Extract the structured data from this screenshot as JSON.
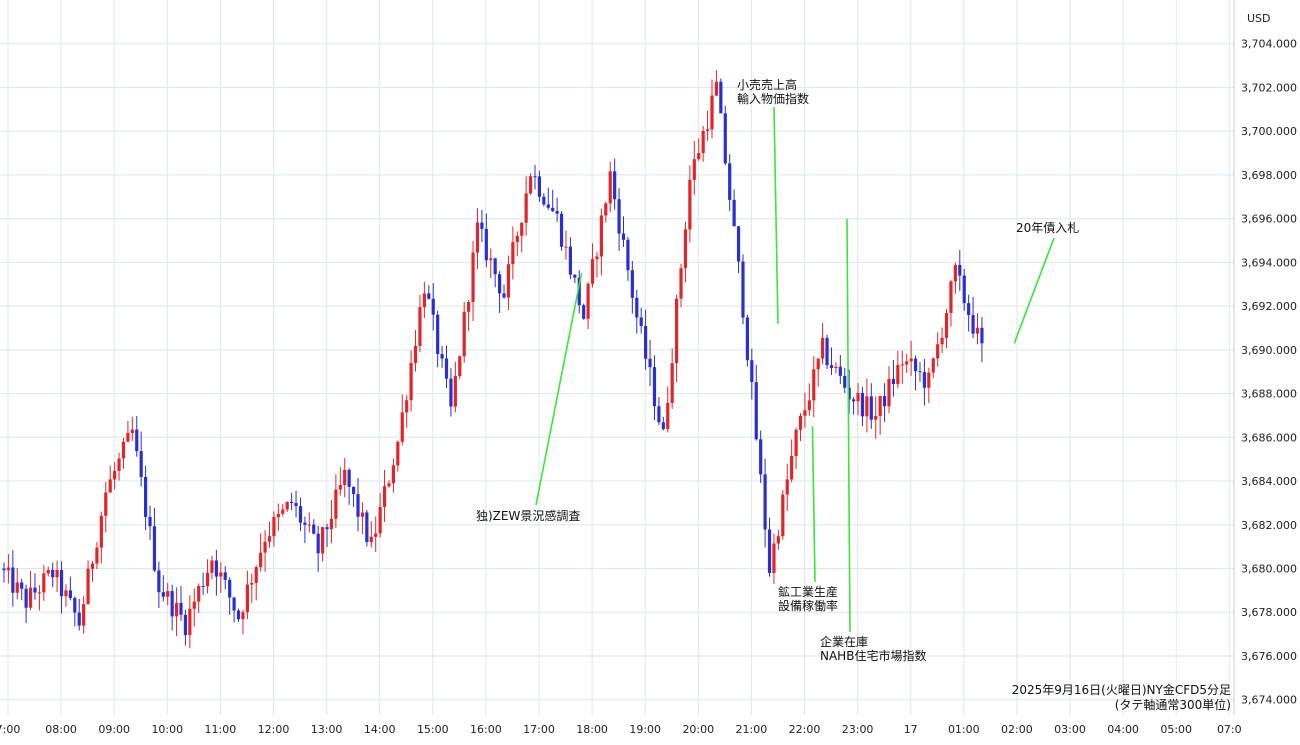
{
  "chart_data": {
    "type": "candlestick",
    "title": "2025年9月16日(火曜日)NY金CFD5分足",
    "subtitle": "(タテ軸通常300単位)",
    "currency": "USD",
    "ylim": [
      3673.3,
      3706.0
    ],
    "y_ticks": [
      "3,674.000",
      "3,676.000",
      "3,678.000",
      "3,680.000",
      "3,682.000",
      "3,684.000",
      "3,686.000",
      "3,688.000",
      "3,690.000",
      "3,692.000",
      "3,694.000",
      "3,696.000",
      "3,698.000",
      "3,700.000",
      "3,702.000",
      "3,704.000"
    ],
    "x_labels": [
      "7:00",
      "08:00",
      "09:00",
      "10:00",
      "11:00",
      "12:00",
      "13:00",
      "14:00",
      "15:00",
      "16:00",
      "17:00",
      "18:00",
      "19:00",
      "20:00",
      "21:00",
      "22:00",
      "23:00",
      "17",
      "01:00",
      "02:00",
      "03:00",
      "04:00",
      "05:00",
      "07:0"
    ],
    "grid": true,
    "colors": {
      "up": "#e0262a",
      "down": "#2a2fd0",
      "annotation_line": "#39e639",
      "grid": "#dfe6ee"
    },
    "hourly_path": [
      3680.0,
      3678.5,
      3679.8,
      3677.5,
      3683.5,
      3686.2,
      3679.2,
      3677.5,
      3680.5,
      3677.8,
      3681.5,
      3683.0,
      3680.8,
      3684.2,
      3681.0,
      3685.8,
      3693.0,
      3687.2,
      3695.5,
      3692.5,
      3698.2,
      3696.0,
      3691.5,
      3698.0,
      3691.5,
      3686.0,
      3697.8,
      3702.0,
      3692.0,
      3680.0,
      3686.0,
      3690.0,
      3688.0,
      3687.0,
      3689.5,
      3688.5,
      3693.5,
      3690.0
    ],
    "annotations": [
      {
        "lines": [
          "独)ZEW景況感調査"
        ],
        "time": 17.8,
        "price": 3693.5
      },
      {
        "lines": [
          "小売売上高",
          "輸入物価指数"
        ],
        "time": 21.5,
        "price": 3691.2
      },
      {
        "lines": [
          "鉱工業生産",
          "設備稼働率"
        ],
        "time": 22.15,
        "price": 3686.5
      },
      {
        "lines": [
          "企業在庫",
          "NAHB住宅市場指数"
        ],
        "time": 22.8,
        "price": 3696.0
      },
      {
        "lines": [
          "20年債入札"
        ],
        "time": 25.95,
        "price": 3690.3
      }
    ]
  }
}
